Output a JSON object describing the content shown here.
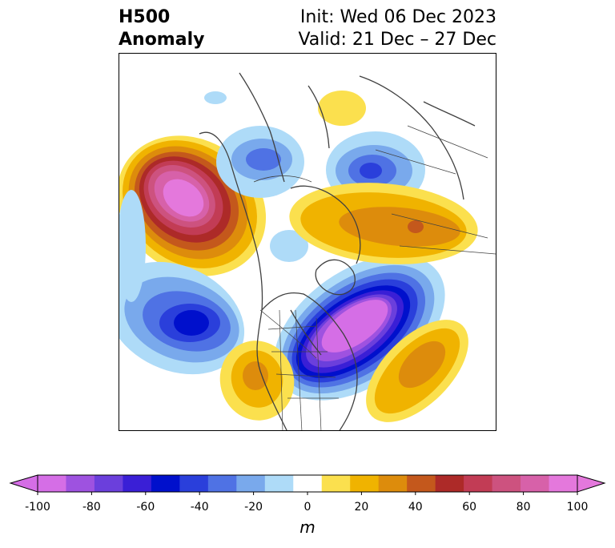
{
  "header": {
    "title_line1": "H500",
    "title_line2": "Anomaly",
    "init_text": "Init: Wed 06 Dec 2023",
    "valid_text": "Valid: 21 Dec – 27 Dec"
  },
  "colorbar": {
    "ticks": [
      "-100",
      "-80",
      "-60",
      "-40",
      "-20",
      "0",
      "20",
      "40",
      "60",
      "80",
      "100"
    ],
    "unit": "m",
    "colors": [
      "#d56ee6",
      "#9e52e0",
      "#6b3fdc",
      "#3a1fd6",
      "#0010cc",
      "#2a3fdb",
      "#4f72e4",
      "#79a9ec",
      "#aedbf8",
      "#ffffff",
      "#fbe04e",
      "#f0b300",
      "#dd8c0c",
      "#c4581c",
      "#ad2a28",
      "#c23c55",
      "#cd527f",
      "#d761a9",
      "#e478dc"
    ],
    "low_end_color": "#d56ee6",
    "high_end_color": "#e478dc"
  },
  "map": {
    "region": "North America and North Pacific, polar projection",
    "features": [
      "height anomaly contours",
      "coastlines",
      "country borders",
      "state borders"
    ]
  }
}
